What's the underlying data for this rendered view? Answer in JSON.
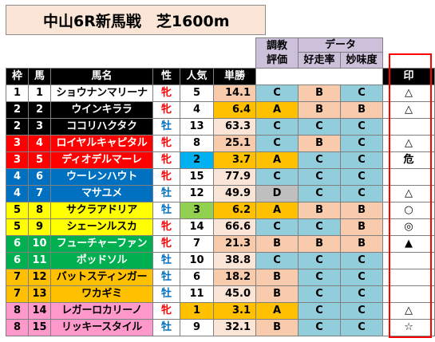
{
  "title": "中山6R新馬戦　芝1600m",
  "header": {
    "group1": [
      "調教",
      "評価"
    ],
    "group2": "データ",
    "cols": [
      "枠",
      "馬",
      "馬名",
      "性",
      "人気",
      "単勝",
      "好走率",
      "妙味度",
      "印"
    ]
  },
  "colors": {
    "black": "#000000",
    "white": "#ffffff",
    "red": "#ff0000",
    "blue": "#0070c0",
    "yellow": "#ffff00",
    "green": "#00b050",
    "orange": "#ffc000",
    "pink": "#ff99cc",
    "gradeC": "#92cddc",
    "gradeA": "#ffc000",
    "gradeB": "#f8cbad",
    "gradeD": "#bfbfbf",
    "odds": "#fbe5d6",
    "oddsLow": "#ffc000",
    "oddsMid": "#f8cbad",
    "pop1": "#ffc000",
    "pop2": "#00b0f0",
    "pop3": "#92d050"
  },
  "rows": [
    {
      "waku": "1",
      "uma": "1",
      "name": "ショウナンマリーナ",
      "sex": "牝",
      "pop": "5",
      "odds": "14.1",
      "eval": "C",
      "rate": "B",
      "value": "C",
      "mark": "△"
    },
    {
      "waku": "2",
      "uma": "2",
      "name": "ウインキララ",
      "sex": "牝",
      "pop": "4",
      "odds": "6.4",
      "eval": "A",
      "rate": "B",
      "value": "B",
      "mark": "△"
    },
    {
      "waku": "2",
      "uma": "3",
      "name": "ココリハクタク",
      "sex": "牡",
      "pop": "13",
      "odds": "63.3",
      "eval": "C",
      "rate": "C",
      "value": "C",
      "mark": ""
    },
    {
      "waku": "3",
      "uma": "4",
      "name": "ロイヤルキャピタル",
      "sex": "牝",
      "pop": "8",
      "odds": "25.1",
      "eval": "C",
      "rate": "B",
      "value": "C",
      "mark": "△"
    },
    {
      "waku": "3",
      "uma": "5",
      "name": "ディオデルマーレ",
      "sex": "牝",
      "pop": "2",
      "odds": "3.7",
      "eval": "A",
      "rate": "C",
      "value": "C",
      "mark": "危"
    },
    {
      "waku": "4",
      "uma": "6",
      "name": "ウーレンハウト",
      "sex": "牝",
      "pop": "15",
      "odds": "77.9",
      "eval": "C",
      "rate": "C",
      "value": "C",
      "mark": ""
    },
    {
      "waku": "4",
      "uma": "7",
      "name": "マサユメ",
      "sex": "牡",
      "pop": "12",
      "odds": "49.9",
      "eval": "D",
      "rate": "C",
      "value": "C",
      "mark": "△"
    },
    {
      "waku": "5",
      "uma": "8",
      "name": "サクラアドリア",
      "sex": "牡",
      "pop": "3",
      "odds": "6.2",
      "eval": "A",
      "rate": "B",
      "value": "B",
      "mark": "○"
    },
    {
      "waku": "5",
      "uma": "9",
      "name": "シェーンルスカ",
      "sex": "牝",
      "pop": "14",
      "odds": "66.6",
      "eval": "C",
      "rate": "C",
      "value": "B",
      "mark": "◎"
    },
    {
      "waku": "6",
      "uma": "10",
      "name": "フューチャーファン",
      "sex": "牝",
      "pop": "7",
      "odds": "21.3",
      "eval": "B",
      "rate": "B",
      "value": "B",
      "mark": "▲"
    },
    {
      "waku": "6",
      "uma": "11",
      "name": "ポッドソル",
      "sex": "牡",
      "pop": "10",
      "odds": "38.8",
      "eval": "C",
      "rate": "C",
      "value": "C",
      "mark": ""
    },
    {
      "waku": "7",
      "uma": "12",
      "name": "バットスティンガー",
      "sex": "牡",
      "pop": "6",
      "odds": "18.2",
      "eval": "B",
      "rate": "C",
      "value": "C",
      "mark": ""
    },
    {
      "waku": "7",
      "uma": "13",
      "name": "ワカギミ",
      "sex": "牡",
      "pop": "11",
      "odds": "45.0",
      "eval": "B",
      "rate": "C",
      "value": "C",
      "mark": ""
    },
    {
      "waku": "8",
      "uma": "14",
      "name": "レガーロカリーノ",
      "sex": "牝",
      "pop": "1",
      "odds": "3.1",
      "eval": "A",
      "rate": "C",
      "value": "C",
      "mark": "△"
    },
    {
      "waku": "8",
      "uma": "15",
      "name": "リッキースタイル",
      "sex": "牡",
      "pop": "9",
      "odds": "32.1",
      "eval": "B",
      "rate": "C",
      "value": "C",
      "mark": "☆"
    }
  ]
}
